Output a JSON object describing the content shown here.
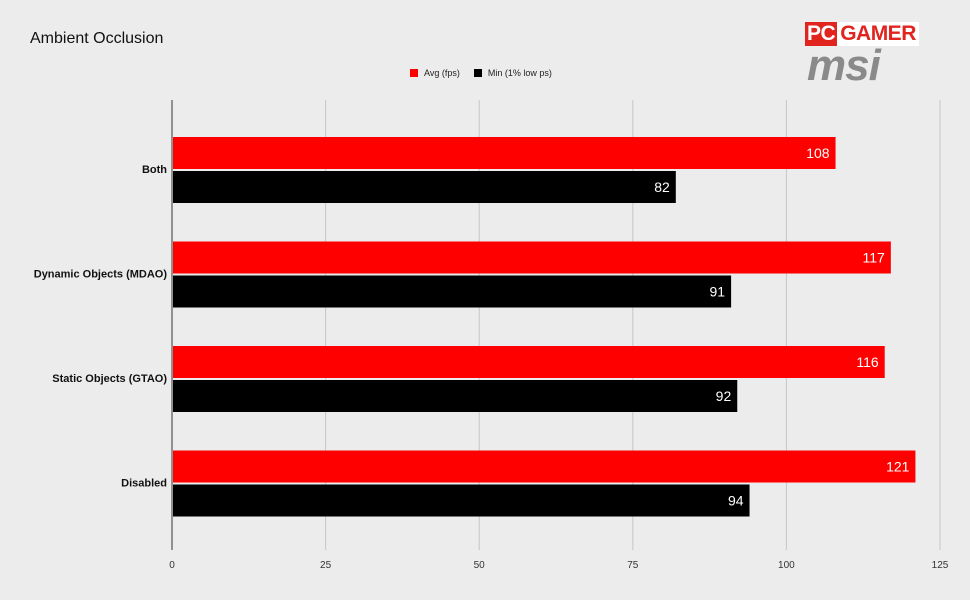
{
  "title": "Ambient Occlusion",
  "brand": {
    "logo_top_pc": "PC",
    "logo_top_gamer": "GAMER",
    "logo_bottom": "msi"
  },
  "chart_data": {
    "type": "bar",
    "orientation": "horizontal",
    "title": "Ambient Occlusion",
    "categories": [
      "Both",
      "Dynamic Objects (MDAO)",
      "Static Objects (GTAO)",
      "Disabled"
    ],
    "series": [
      {
        "name": "Avg (fps)",
        "color": "#ff0000",
        "values": [
          108,
          117,
          116,
          121
        ]
      },
      {
        "name": "Min (1% low ps)",
        "color": "#000000",
        "values": [
          82,
          91,
          92,
          94
        ]
      }
    ],
    "xlim": [
      0,
      125
    ],
    "xticks": [
      0,
      25,
      50,
      75,
      100,
      125
    ],
    "grid": true,
    "legend_position": "top-center",
    "data_labels": true
  }
}
